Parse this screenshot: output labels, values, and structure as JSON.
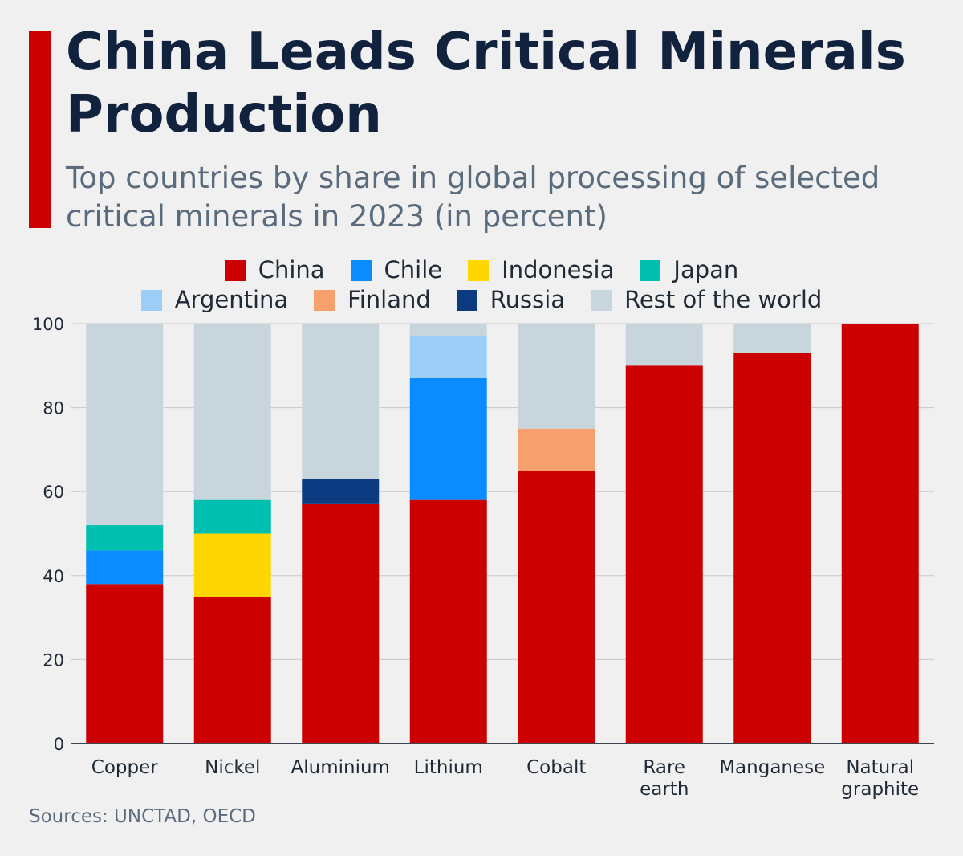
{
  "header": {
    "title": "China Leads Critical Minerals Production",
    "subtitle": "Top countries by share in global processing of selected critical minerals in 2023 (in percent)"
  },
  "footer": {
    "source": "Sources: UNCTAD, OECD"
  },
  "colors": {
    "accent": "#cc0000",
    "China": "#cc0000",
    "Chile": "#0a8cff",
    "Indonesia": "#ffd700",
    "Japan": "#00bfae",
    "Argentina": "#9ccdf7",
    "Finland": "#f7a06e",
    "Russia": "#0d3b82",
    "Rest of the world": "#c9d5dc"
  },
  "legend": [
    [
      "China",
      "Chile",
      "Indonesia",
      "Japan"
    ],
    [
      "Argentina",
      "Finland",
      "Russia",
      "Rest of the world"
    ]
  ],
  "chart_data": {
    "type": "bar",
    "stacked": true,
    "categories": [
      [
        "Copper"
      ],
      [
        "Nickel"
      ],
      [
        "Aluminium"
      ],
      [
        "Lithium"
      ],
      [
        "Cobalt"
      ],
      [
        "Rare",
        "earth"
      ],
      [
        "Manganese"
      ],
      [
        "Natural",
        "graphite"
      ]
    ],
    "series": [
      {
        "name": "China",
        "values": [
          38,
          35,
          57,
          58,
          65,
          90,
          93,
          100
        ]
      },
      {
        "name": "Chile",
        "values": [
          8,
          0,
          0,
          29,
          0,
          0,
          0,
          0
        ]
      },
      {
        "name": "Indonesia",
        "values": [
          0,
          15,
          0,
          0,
          0,
          0,
          0,
          0
        ]
      },
      {
        "name": "Japan",
        "values": [
          6,
          8,
          0,
          0,
          0,
          0,
          0,
          0
        ]
      },
      {
        "name": "Argentina",
        "values": [
          0,
          0,
          0,
          10,
          0,
          0,
          0,
          0
        ]
      },
      {
        "name": "Finland",
        "values": [
          0,
          0,
          0,
          0,
          10,
          0,
          0,
          0
        ]
      },
      {
        "name": "Russia",
        "values": [
          0,
          0,
          6,
          0,
          0,
          0,
          0,
          0
        ]
      },
      {
        "name": "Rest of the world",
        "values": [
          48,
          42,
          37,
          3,
          25,
          10,
          7,
          0
        ]
      }
    ],
    "yticks": [
      "0",
      "20",
      "40",
      "60",
      "80",
      "100"
    ],
    "ylim": [
      0,
      100
    ],
    "grid": true,
    "legend_position": "top"
  }
}
